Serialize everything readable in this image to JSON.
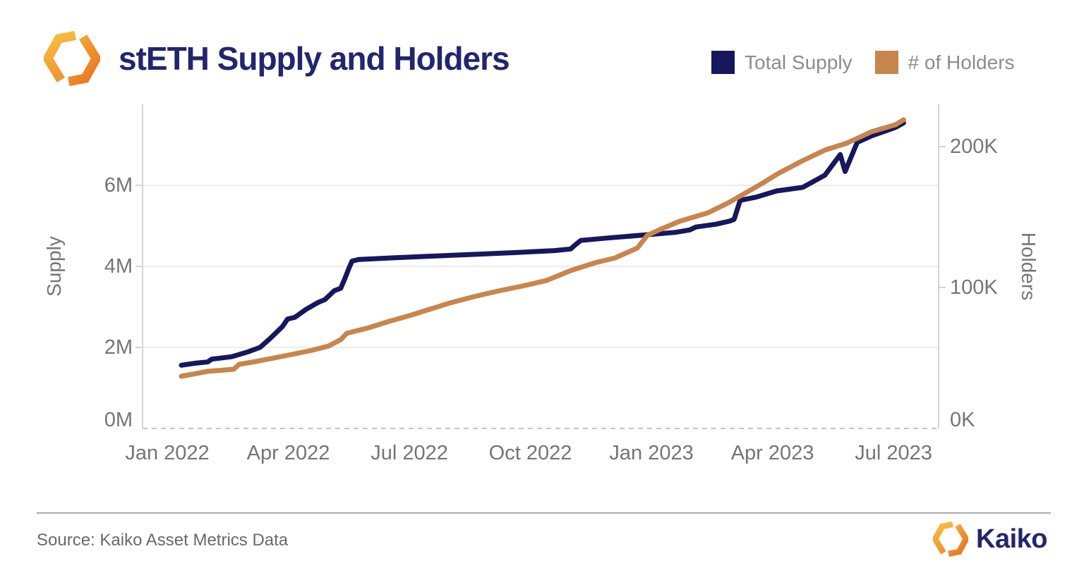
{
  "header": {
    "title": "stETH Supply and Holders"
  },
  "legend": {
    "items": [
      {
        "label": "Total Supply",
        "color": "#16175d"
      },
      {
        "label": "# of Holders",
        "color": "#c8854c"
      }
    ]
  },
  "chart_data": {
    "type": "line",
    "title": "stETH Supply and Holders",
    "grid": "horizontal-left-axis-only",
    "legend_position": "top-right",
    "x_axis": {
      "tick_labels": [
        "Jan 2022",
        "Apr 2022",
        "Jul 2022",
        "Oct 2022",
        "Jan 2023",
        "Apr 2023",
        "Jul 2023"
      ],
      "tick_months_from_jan_2022": [
        0,
        3,
        6,
        9,
        12,
        15,
        18
      ]
    },
    "y_axis_left": {
      "label": "Supply",
      "tick_labels": [
        "0M",
        "2M",
        "4M",
        "6M"
      ],
      "tick_values": [
        0,
        2,
        4,
        6
      ],
      "grid_values": [
        2,
        4,
        6
      ],
      "range": [
        0,
        8
      ],
      "unit": "millions of stETH"
    },
    "y_axis_right": {
      "label": "Holders",
      "tick_labels": [
        "0K",
        "100K",
        "200K"
      ],
      "tick_values": [
        0,
        100,
        200
      ],
      "range": [
        0,
        230
      ],
      "unit": "thousands of holders"
    },
    "series": [
      {
        "name": "Total Supply",
        "axis": "left",
        "color": "#16175d",
        "points_month_value": [
          [
            0.35,
            1.56
          ],
          [
            0.7,
            1.61
          ],
          [
            1.0,
            1.64
          ],
          [
            1.1,
            1.71
          ],
          [
            1.6,
            1.77
          ],
          [
            2.0,
            1.89
          ],
          [
            2.3,
            2.0
          ],
          [
            2.56,
            2.23
          ],
          [
            2.86,
            2.52
          ],
          [
            2.98,
            2.7
          ],
          [
            3.16,
            2.74
          ],
          [
            3.44,
            2.94
          ],
          [
            3.74,
            3.11
          ],
          [
            3.91,
            3.18
          ],
          [
            4.14,
            3.4
          ],
          [
            4.3,
            3.46
          ],
          [
            4.4,
            3.69
          ],
          [
            4.5,
            3.95
          ],
          [
            4.58,
            4.13
          ],
          [
            4.75,
            4.17
          ],
          [
            5.6,
            4.21
          ],
          [
            6.5,
            4.25
          ],
          [
            7.5,
            4.29
          ],
          [
            8.6,
            4.34
          ],
          [
            9.6,
            4.39
          ],
          [
            10.0,
            4.43
          ],
          [
            10.1,
            4.52
          ],
          [
            10.25,
            4.64
          ],
          [
            10.9,
            4.7
          ],
          [
            11.9,
            4.78
          ],
          [
            12.6,
            4.84
          ],
          [
            12.95,
            4.9
          ],
          [
            13.1,
            4.97
          ],
          [
            13.6,
            5.04
          ],
          [
            13.95,
            5.12
          ],
          [
            14.05,
            5.16
          ],
          [
            14.2,
            5.63
          ],
          [
            14.6,
            5.71
          ],
          [
            15.1,
            5.86
          ],
          [
            15.75,
            5.95
          ],
          [
            16.3,
            6.25
          ],
          [
            16.68,
            6.76
          ],
          [
            16.8,
            6.34
          ],
          [
            17.1,
            7.06
          ],
          [
            17.45,
            7.22
          ],
          [
            18.05,
            7.43
          ],
          [
            18.25,
            7.54
          ]
        ]
      },
      {
        "name": "# of Holders",
        "axis": "right",
        "color": "#c8854c",
        "points_month_value": [
          [
            0.35,
            37
          ],
          [
            1.0,
            40.5
          ],
          [
            1.65,
            42
          ],
          [
            1.78,
            45.5
          ],
          [
            2.2,
            47.5
          ],
          [
            3.0,
            52
          ],
          [
            3.6,
            55.5
          ],
          [
            4.0,
            58.5
          ],
          [
            4.3,
            63
          ],
          [
            4.45,
            67.5
          ],
          [
            5.0,
            71.5
          ],
          [
            5.5,
            76
          ],
          [
            6.0,
            80
          ],
          [
            6.5,
            84.5
          ],
          [
            7.0,
            89
          ],
          [
            7.6,
            93.5
          ],
          [
            8.2,
            97.5
          ],
          [
            8.8,
            101
          ],
          [
            9.4,
            105
          ],
          [
            10.0,
            112
          ],
          [
            10.6,
            117.5
          ],
          [
            11.1,
            121
          ],
          [
            11.65,
            128
          ],
          [
            11.9,
            137
          ],
          [
            12.2,
            141
          ],
          [
            12.7,
            147
          ],
          [
            13.4,
            153
          ],
          [
            13.9,
            160
          ],
          [
            14.45,
            169
          ],
          [
            14.75,
            174
          ],
          [
            15.15,
            181
          ],
          [
            15.75,
            190
          ],
          [
            16.3,
            197.5
          ],
          [
            16.85,
            202.5
          ],
          [
            17.45,
            210.5
          ],
          [
            18.05,
            215.5
          ],
          [
            18.25,
            219
          ]
        ]
      }
    ]
  },
  "footer": {
    "source": "Source: Kaiko Asset Metrics Data",
    "brand": "Kaiko"
  },
  "colors": {
    "title_text": "#22266d",
    "brand_text": "#23266b",
    "axis_text": "#757575",
    "legend_text": "#8c8c8c",
    "grid_line": "#ececec",
    "axis_line": "#d4d4d4",
    "baseline_dashed": "#c4c4c4",
    "supply_line": "#16175d",
    "holders_line": "#c8854c",
    "logo_gold": "#f7c043",
    "logo_orange": "#e87722"
  }
}
